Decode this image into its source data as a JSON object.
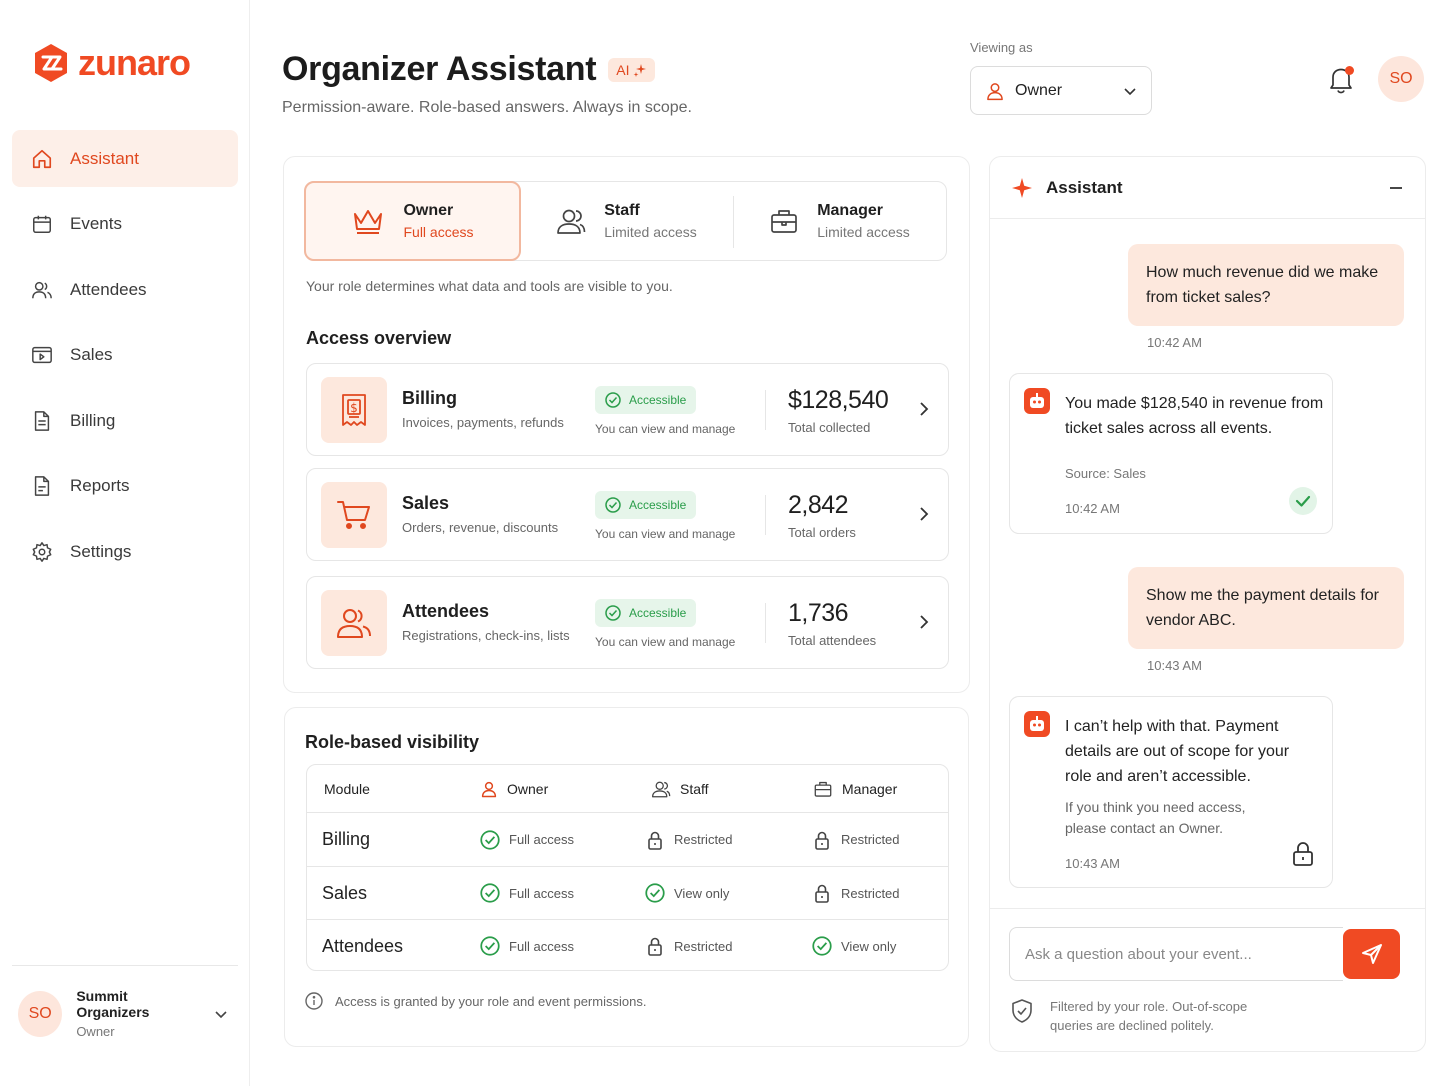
{
  "brand": {
    "name": "zunaro",
    "accent": "#f04a23",
    "accent_soft": "#fde8dd",
    "success": "#2a9d4a"
  },
  "sidebar": {
    "items": [
      {
        "label": "Assistant",
        "icon": "home-icon",
        "active": true
      },
      {
        "label": "Events",
        "icon": "calendar-icon"
      },
      {
        "label": "Attendees",
        "icon": "users-icon"
      },
      {
        "label": "Sales",
        "icon": "sales-icon"
      },
      {
        "label": "Billing",
        "icon": "document-icon"
      },
      {
        "label": "Reports",
        "icon": "report-icon"
      },
      {
        "label": "Settings",
        "icon": "gear-icon"
      }
    ],
    "org": {
      "initials": "SO",
      "name": "Summit Organizers",
      "role": "Owner"
    }
  },
  "header": {
    "title": "Organizer Assistant",
    "ai_badge": "AI",
    "subtitle": "Permission-aware. Role-based answers. Always in scope.",
    "viewing_label": "Viewing as",
    "viewing_role": "Owner",
    "user_initials": "SO"
  },
  "roles": {
    "tabs": [
      {
        "title": "Owner",
        "sub": "Full access",
        "icon": "crown-icon",
        "active": true
      },
      {
        "title": "Staff",
        "sub": "Limited access",
        "icon": "staff-icon"
      },
      {
        "title": "Manager",
        "sub": "Limited access",
        "icon": "briefcase-icon"
      }
    ],
    "note": "Your role determines what data and tools are visible to you."
  },
  "access_overview": {
    "title": "Access overview",
    "modules": [
      {
        "name": "Billing",
        "desc": "Invoices, payments, refunds",
        "status": "Accessible",
        "status_sub": "You can view and manage",
        "value": "$128,540",
        "value_label": "Total collected",
        "icon": "receipt-icon"
      },
      {
        "name": "Sales",
        "desc": "Orders, revenue, discounts",
        "status": "Accessible",
        "status_sub": "You can view and manage",
        "value": "2,842",
        "value_label": "Total orders",
        "icon": "cart-icon"
      },
      {
        "name": "Attendees",
        "desc": "Registrations, check-ins, lists",
        "status": "Accessible",
        "status_sub": "You can view and manage",
        "value": "1,736",
        "value_label": "Total attendees",
        "icon": "users-icon"
      }
    ]
  },
  "visibility": {
    "title": "Role-based visibility",
    "headers": {
      "module": "Module",
      "owner": "Owner",
      "staff": "Staff",
      "manager": "Manager"
    },
    "rows": [
      {
        "module": "Billing",
        "owner": "Full access",
        "staff": "Restricted",
        "manager": "Restricted"
      },
      {
        "module": "Sales",
        "owner": "Full access",
        "staff": "View only",
        "manager": "Restricted"
      },
      {
        "module": "Attendees",
        "owner": "Full access",
        "staff": "Restricted",
        "manager": "View only"
      }
    ],
    "footer": "Access is granted by your role and event permissions."
  },
  "chat": {
    "title": "Assistant",
    "messages": [
      {
        "from": "user",
        "text": "How much revenue did we make from ticket sales?",
        "time": "10:42 AM"
      },
      {
        "from": "bot",
        "text": "You made $128,540 in revenue from ticket sales across all events.",
        "source": "Source: Sales",
        "time": "10:42 AM",
        "status": "check-icon"
      },
      {
        "from": "user",
        "text": "Show me the payment details for vendor ABC.",
        "time": "10:43 AM"
      },
      {
        "from": "bot",
        "text": "I can’t help with that. Payment details are out of scope for your role and aren’t accessible.",
        "note": "If you think you need access, please contact an Owner.",
        "time": "10:43 AM",
        "status": "lock-icon"
      }
    ],
    "input_placeholder": "Ask a question about your event...",
    "footer_note": "Filtered by your role. Out-of-scope queries are declined politely."
  }
}
